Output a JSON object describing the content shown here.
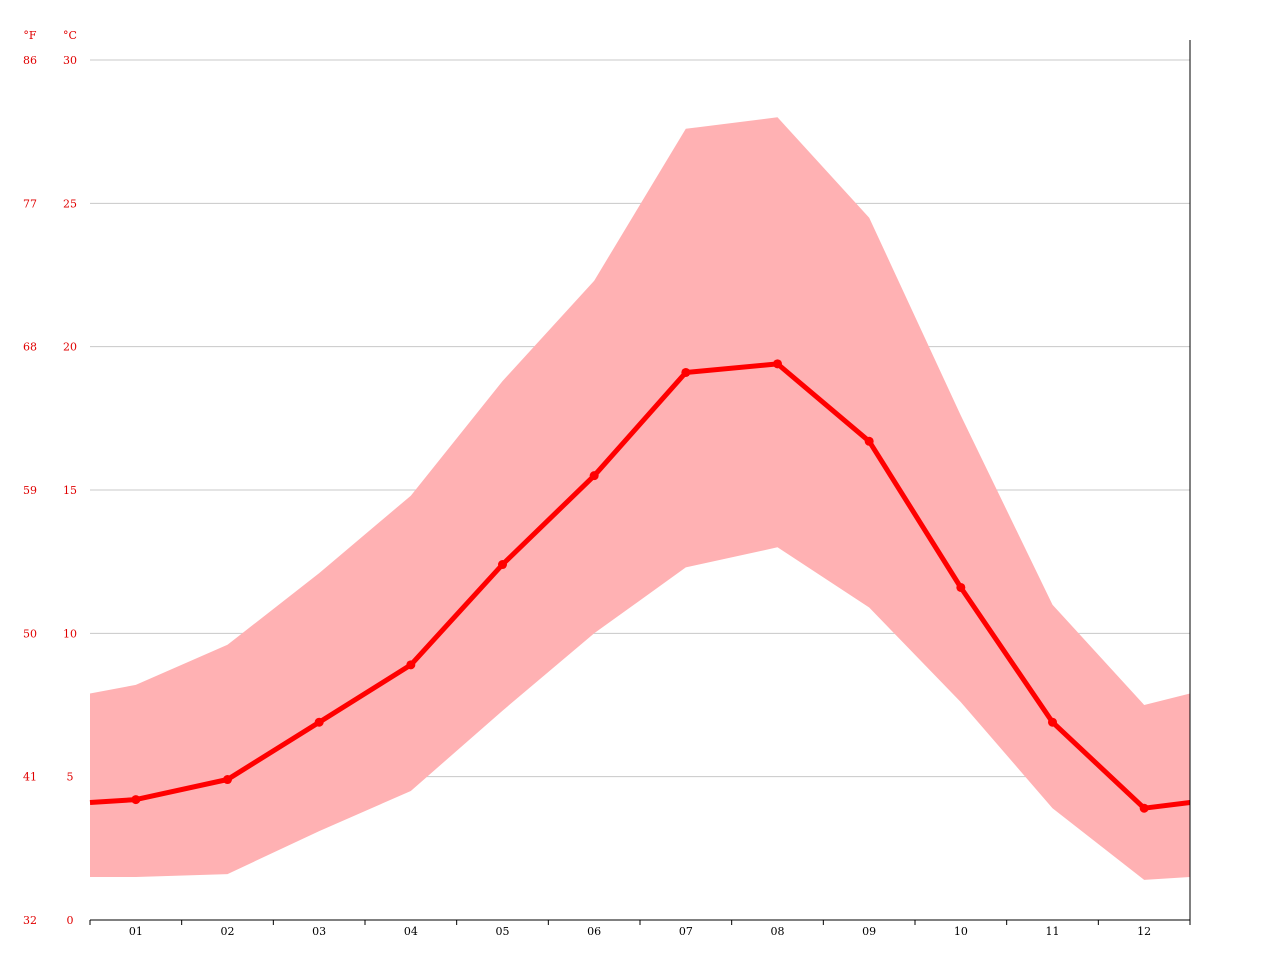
{
  "chart_data": {
    "type": "line",
    "title": "",
    "xlabel": "",
    "ylabel": "",
    "categories": [
      "01",
      "02",
      "03",
      "04",
      "05",
      "06",
      "07",
      "08",
      "09",
      "10",
      "11",
      "12"
    ],
    "series": [
      {
        "name": "",
        "role": "mean",
        "values": [
          4.2,
          4.9,
          6.9,
          8.9,
          12.4,
          15.5,
          19.1,
          19.4,
          16.7,
          11.6,
          6.9,
          3.9
        ]
      },
      {
        "name": "",
        "role": "max",
        "values": [
          8.2,
          9.6,
          12.1,
          14.8,
          18.8,
          22.3,
          27.6,
          28.0,
          24.5,
          17.6,
          11.0,
          7.5
        ]
      },
      {
        "name": "",
        "role": "min",
        "values": [
          1.5,
          1.6,
          3.1,
          4.5,
          7.3,
          10.0,
          12.3,
          13.0,
          10.9,
          7.6,
          3.9,
          1.4
        ]
      }
    ],
    "edge_values": {
      "mean": [
        4.1,
        4.1
      ],
      "max": [
        7.9,
        7.9
      ],
      "min": [
        1.5,
        1.5
      ]
    },
    "ylim": [
      0,
      30
    ],
    "y_ticks_c": [
      "0",
      "5",
      "10",
      "15",
      "20",
      "25",
      "30"
    ],
    "y_ticks_f": [
      "32",
      "41",
      "50",
      "59",
      "68",
      "77",
      "86"
    ],
    "unit_f": "°F",
    "unit_c": "°C",
    "grid": true,
    "colors": {
      "line": "#ff0000",
      "band": "#ffb1b3",
      "grid": "#c8c8c8",
      "axis_text": "#e00000"
    }
  }
}
